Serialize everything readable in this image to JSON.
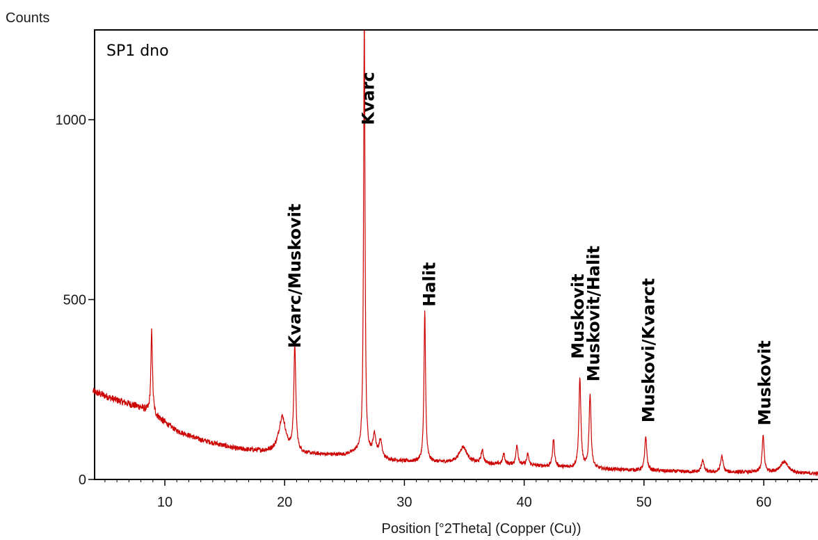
{
  "chart_data": {
    "type": "line",
    "title": "",
    "ylabel": "Counts",
    "xlabel": "Position [°2Theta] (Copper (Cu))",
    "sample_label": "SP1 dno",
    "xlim": [
      4,
      65
    ],
    "ylim": [
      0,
      1250
    ],
    "x_ticks": [
      10,
      20,
      30,
      40,
      50,
      60
    ],
    "y_ticks": [
      0,
      500,
      1000
    ],
    "grid": false,
    "line_color": "#cc0000",
    "series": [
      {
        "peaks": [
          {
            "x": 8.9,
            "y": 230,
            "w": 0.08
          },
          {
            "x": 19.8,
            "y": 100,
            "w": 0.35
          },
          {
            "x": 20.85,
            "y": 295,
            "w": 0.1
          },
          {
            "x": 26.65,
            "y": 1240,
            "w": 0.07
          },
          {
            "x": 27.5,
            "y": 60,
            "w": 0.15
          },
          {
            "x": 28.0,
            "y": 50,
            "w": 0.15
          },
          {
            "x": 31.7,
            "y": 420,
            "w": 0.08
          },
          {
            "x": 34.9,
            "y": 45,
            "w": 0.4
          },
          {
            "x": 36.5,
            "y": 35,
            "w": 0.12
          },
          {
            "x": 38.3,
            "y": 30,
            "w": 0.1
          },
          {
            "x": 39.4,
            "y": 55,
            "w": 0.1
          },
          {
            "x": 40.3,
            "y": 30,
            "w": 0.1
          },
          {
            "x": 42.45,
            "y": 75,
            "w": 0.1
          },
          {
            "x": 44.65,
            "y": 250,
            "w": 0.1
          },
          {
            "x": 45.5,
            "y": 205,
            "w": 0.1
          },
          {
            "x": 50.15,
            "y": 95,
            "w": 0.1
          },
          {
            "x": 54.9,
            "y": 35,
            "w": 0.12
          },
          {
            "x": 56.5,
            "y": 45,
            "w": 0.12
          },
          {
            "x": 59.95,
            "y": 100,
            "w": 0.1
          },
          {
            "x": 61.7,
            "y": 30,
            "w": 0.4
          }
        ],
        "background": [
          {
            "x": 4,
            "y": 245
          },
          {
            "x": 6,
            "y": 220
          },
          {
            "x": 8,
            "y": 200
          },
          {
            "x": 9.5,
            "y": 170
          },
          {
            "x": 11,
            "y": 135
          },
          {
            "x": 13,
            "y": 110
          },
          {
            "x": 16,
            "y": 85
          },
          {
            "x": 19,
            "y": 75
          },
          {
            "x": 22,
            "y": 70
          },
          {
            "x": 25,
            "y": 68
          },
          {
            "x": 26,
            "y": 75
          },
          {
            "x": 28,
            "y": 55
          },
          {
            "x": 30,
            "y": 50
          },
          {
            "x": 35,
            "y": 45
          },
          {
            "x": 40,
            "y": 40
          },
          {
            "x": 45,
            "y": 30
          },
          {
            "x": 50,
            "y": 25
          },
          {
            "x": 55,
            "y": 20
          },
          {
            "x": 60,
            "y": 20
          },
          {
            "x": 65,
            "y": 15
          }
        ]
      }
    ],
    "annotations": [
      {
        "text": "Kvarc/Muskovit",
        "x": 20.85,
        "y": 365
      },
      {
        "text": "Kvarc",
        "x": 27.0,
        "y": 985
      },
      {
        "text": "Halit",
        "x": 32.1,
        "y": 480
      },
      {
        "text": "Muskovit",
        "x": 44.5,
        "y": 335
      },
      {
        "text": "Muskovit/Halit",
        "x": 45.8,
        "y": 272
      },
      {
        "text": "Muskovi/Kvarct",
        "x": 50.4,
        "y": 158
      },
      {
        "text": "Muskovit",
        "x": 60.1,
        "y": 150
      }
    ]
  }
}
